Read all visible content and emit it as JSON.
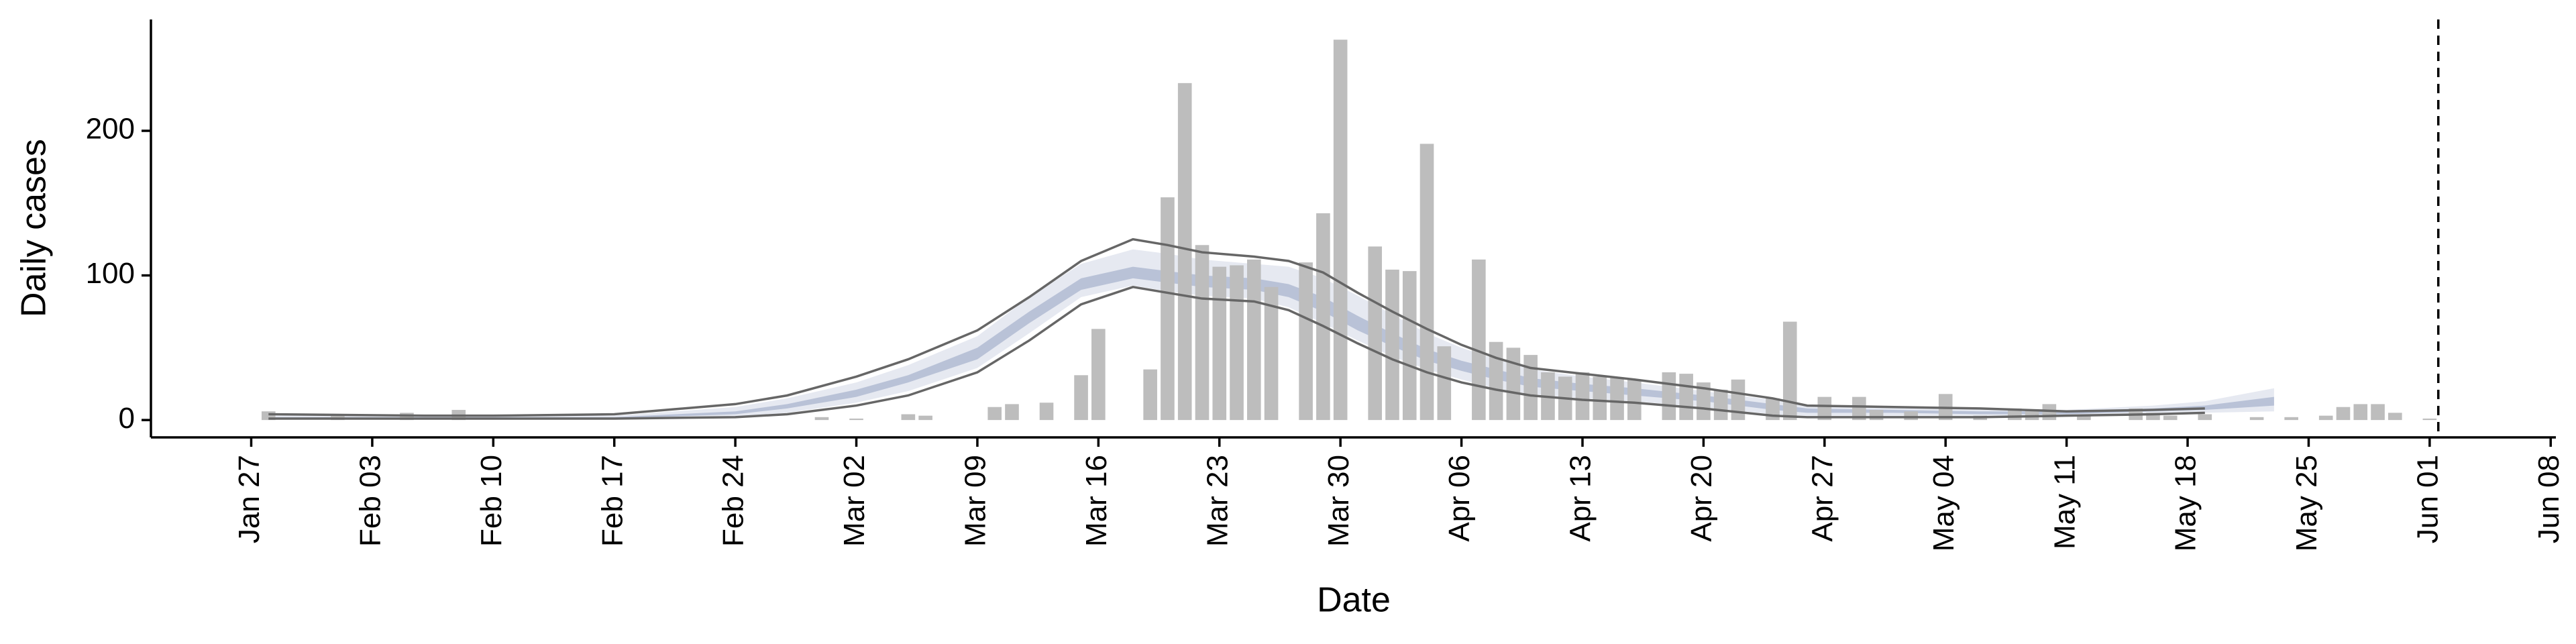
{
  "chart_data": {
    "type": "bar",
    "x_label": "Date",
    "y_label": "Daily cases",
    "color": "#bdbdbd",
    "x": [
      1,
      5,
      9,
      12,
      33,
      35,
      38,
      39,
      43,
      44,
      46,
      48,
      49,
      52,
      53,
      54,
      55,
      56,
      57,
      58,
      59,
      61,
      62,
      63,
      65,
      66,
      67,
      68,
      69,
      71,
      72,
      73,
      74,
      75,
      76,
      77,
      78,
      79,
      80,
      82,
      83,
      84,
      85,
      86,
      88,
      89,
      91,
      93,
      94,
      96,
      98,
      100,
      102,
      103,
      104,
      106,
      109,
      110,
      111,
      113,
      116,
      118,
      120,
      121,
      122,
      123,
      124,
      126
    ],
    "values": [
      6,
      3,
      5,
      7,
      2,
      1,
      4,
      3,
      9,
      11,
      12,
      31,
      63,
      35,
      154,
      233,
      121,
      106,
      107,
      111,
      92,
      109,
      143,
      263,
      120,
      104,
      103,
      191,
      51,
      111,
      54,
      50,
      45,
      33,
      30,
      33,
      30,
      29,
      28,
      33,
      32,
      26,
      21,
      28,
      15,
      68,
      16,
      16,
      7,
      6,
      18,
      3,
      8,
      7,
      11,
      3,
      8,
      5,
      3,
      4,
      2,
      2,
      3,
      9,
      11,
      11,
      5,
      1
    ],
    "bands": [
      {
        "color": "#e6e9f1",
        "x": [
          1,
          10,
          14,
          21,
          28,
          31,
          35,
          38,
          42,
          45,
          48,
          51,
          53,
          55,
          58,
          60,
          62,
          64,
          66,
          68,
          70,
          72,
          74,
          77,
          80,
          84,
          88,
          90,
          95,
          100,
          105,
          110,
          113,
          117
        ],
        "upper": [
          3,
          3,
          3,
          3,
          9,
          15,
          26,
          38,
          58,
          85,
          108,
          118,
          115,
          111,
          108,
          106,
          98,
          86,
          73,
          60,
          50,
          42,
          35,
          30,
          26,
          20,
          14,
          10,
          9,
          8,
          7,
          10,
          13,
          22
        ],
        "lower": [
          1,
          1,
          1,
          1,
          2,
          5,
          12,
          20,
          36,
          60,
          85,
          93,
          89,
          86,
          84,
          78,
          67,
          55,
          44,
          35,
          28,
          22,
          18,
          15,
          13,
          9,
          4,
          3,
          3,
          3,
          3,
          4,
          5,
          6
        ]
      },
      {
        "color": "#b9c2d7",
        "x": [
          1,
          10,
          14,
          21,
          28,
          31,
          35,
          38,
          42,
          45,
          48,
          51,
          53,
          55,
          58,
          60,
          62,
          64,
          66,
          68,
          70,
          72,
          74,
          77,
          80,
          84,
          88,
          90,
          95,
          100,
          105,
          110,
          113,
          117
        ],
        "upper": [
          2,
          2,
          2,
          2,
          6,
          11,
          21,
          31,
          50,
          75,
          98,
          106,
          103,
          100,
          98,
          94,
          85,
          72,
          60,
          49,
          41,
          35,
          29,
          25,
          22,
          17,
          11,
          8,
          7,
          6,
          6,
          8,
          10,
          16
        ],
        "lower": [
          1,
          1,
          1,
          1,
          4,
          8,
          16,
          26,
          42,
          67,
          90,
          98,
          95,
          92,
          90,
          85,
          75,
          62,
          51,
          41,
          34,
          28,
          23,
          20,
          17,
          13,
          7,
          5,
          5,
          4,
          4,
          6,
          7,
          10
        ]
      }
    ],
    "lines": [
      {
        "color": "#666666",
        "x": [
          1,
          10,
          14,
          21,
          28,
          31,
          35,
          38,
          42,
          45,
          48,
          51,
          53,
          55,
          58,
          60,
          62,
          64,
          66,
          68,
          70,
          72,
          74,
          77,
          80,
          84,
          88,
          90,
          95,
          100,
          105,
          110,
          113
        ],
        "values": [
          4,
          3,
          3,
          4,
          11,
          17,
          30,
          42,
          62,
          85,
          110,
          125,
          121,
          116,
          113,
          110,
          102,
          88,
          75,
          63,
          52,
          43,
          36,
          32,
          28,
          22,
          15,
          10,
          9,
          8,
          6,
          7,
          8
        ]
      },
      {
        "color": "#666666",
        "x": [
          1,
          10,
          14,
          21,
          28,
          31,
          35,
          38,
          42,
          45,
          48,
          51,
          53,
          55,
          58,
          60,
          62,
          64,
          66,
          68,
          70,
          72,
          74,
          77,
          80,
          84,
          88,
          90,
          95,
          100,
          105,
          110,
          113
        ],
        "values": [
          1,
          1,
          1,
          1,
          2,
          4,
          10,
          17,
          33,
          55,
          80,
          92,
          88,
          84,
          82,
          76,
          65,
          53,
          42,
          33,
          26,
          21,
          17,
          14,
          12,
          8,
          3,
          2,
          2,
          2,
          3,
          4,
          5
        ]
      }
    ],
    "vline": {
      "x": 126.5,
      "dashed": true
    },
    "xlim": [
      -5.8,
      133.3
    ],
    "ylim": [
      -12,
      277
    ],
    "xticks": [
      {
        "value": 0,
        "label": "Jan 27"
      },
      {
        "value": 7,
        "label": "Feb 03"
      },
      {
        "value": 14,
        "label": "Feb 10"
      },
      {
        "value": 21,
        "label": "Feb 17"
      },
      {
        "value": 28,
        "label": "Feb 24"
      },
      {
        "value": 35,
        "label": "Mar 02"
      },
      {
        "value": 42,
        "label": "Mar 09"
      },
      {
        "value": 49,
        "label": "Mar 16"
      },
      {
        "value": 56,
        "label": "Mar 23"
      },
      {
        "value": 63,
        "label": "Mar 30"
      },
      {
        "value": 70,
        "label": "Apr 06"
      },
      {
        "value": 77,
        "label": "Apr 13"
      },
      {
        "value": 84,
        "label": "Apr 20"
      },
      {
        "value": 91,
        "label": "Apr 27"
      },
      {
        "value": 98,
        "label": "May 04"
      },
      {
        "value": 105,
        "label": "May 11"
      },
      {
        "value": 112,
        "label": "May 18"
      },
      {
        "value": 119,
        "label": "May 25"
      },
      {
        "value": 126,
        "label": "Jun 01"
      },
      {
        "value": 133,
        "label": "Jun 08"
      }
    ],
    "yticks": [
      0,
      100,
      200
    ]
  }
}
